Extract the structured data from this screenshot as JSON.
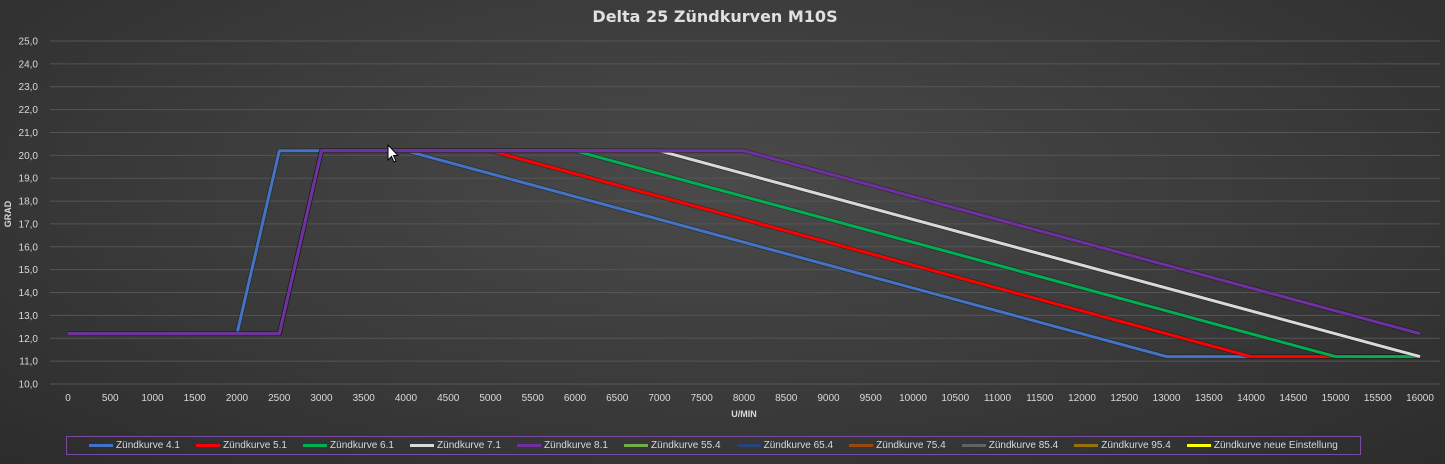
{
  "chart_data": {
    "type": "line",
    "title": "Delta 25 Zündkurven M10S",
    "xlabel": "U/MIN",
    "ylabel": "GRAD",
    "ylim": [
      10.0,
      25.0
    ],
    "xlim": [
      0,
      16000
    ],
    "yticks": [
      "10,0",
      "11,0",
      "12,0",
      "13,0",
      "14,0",
      "15,0",
      "16,0",
      "17,0",
      "18,0",
      "19,0",
      "20,0",
      "21,0",
      "22,0",
      "23,0",
      "24,0",
      "25,0"
    ],
    "xticks": [
      "0",
      "500",
      "1000",
      "1500",
      "2000",
      "2500",
      "3000",
      "3500",
      "4000",
      "4500",
      "5000",
      "5500",
      "6000",
      "6500",
      "7000",
      "7500",
      "8000",
      "8500",
      "9000",
      "9500",
      "10000",
      "10500",
      "11000",
      "11500",
      "12000",
      "12500",
      "13000",
      "13500",
      "14000",
      "14500",
      "15000",
      "15500",
      "16000"
    ],
    "grid": true,
    "series": [
      {
        "name": "Zündkurve 4.1",
        "color": "#4472c4",
        "points": [
          [
            0,
            12.2
          ],
          [
            2000,
            12.2
          ],
          [
            2500,
            20.2
          ],
          [
            3000,
            20.2
          ],
          [
            4000,
            20.2
          ],
          [
            13000,
            11.2
          ],
          [
            16000,
            11.2
          ]
        ]
      },
      {
        "name": "Zündkurve 5.1",
        "color": "#ff0000",
        "points": [
          [
            0,
            12.2
          ],
          [
            2500,
            12.2
          ],
          [
            3000,
            20.2
          ],
          [
            5000,
            20.2
          ],
          [
            14000,
            11.2
          ],
          [
            16000,
            11.2
          ]
        ]
      },
      {
        "name": "Zündkurve 6.1",
        "color": "#00b050",
        "points": [
          [
            0,
            12.2
          ],
          [
            2500,
            12.2
          ],
          [
            3000,
            20.2
          ],
          [
            6000,
            20.2
          ],
          [
            15000,
            11.2
          ],
          [
            16000,
            11.2
          ]
        ]
      },
      {
        "name": "Zündkurve 7.1",
        "color": "#d9d9d9",
        "points": [
          [
            0,
            12.2
          ],
          [
            2500,
            12.2
          ],
          [
            3000,
            20.2
          ],
          [
            7000,
            20.2
          ],
          [
            16000,
            11.2
          ]
        ]
      },
      {
        "name": "Zündkurve 8.1",
        "color": "#7030a0",
        "points": [
          [
            0,
            12.2
          ],
          [
            2500,
            12.2
          ],
          [
            3000,
            20.2
          ],
          [
            8000,
            20.2
          ],
          [
            16000,
            12.2
          ]
        ]
      },
      {
        "name": "Zündkurve 55.4",
        "color": "#70ad47",
        "points": []
      },
      {
        "name": "Zündkurve 65.4",
        "color": "#264478",
        "points": []
      },
      {
        "name": "Zündkurve 75.4",
        "color": "#9e480e",
        "points": []
      },
      {
        "name": "Zündkurve 85.4",
        "color": "#636363",
        "points": []
      },
      {
        "name": "Zündkurve 95.4",
        "color": "#997300",
        "points": []
      },
      {
        "name": "Zündkurve neue Einstellung",
        "color": "#ffff00",
        "points": []
      }
    ]
  }
}
